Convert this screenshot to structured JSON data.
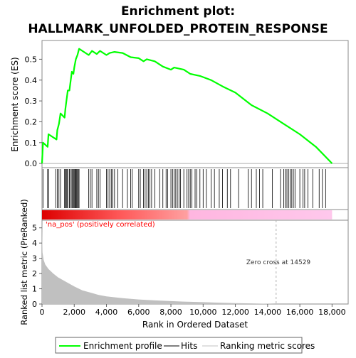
{
  "chart_data": {
    "type": "line",
    "title_line1": "Enrichment plot:",
    "title_line2": "HALLMARK_UNFOLDED_PROTEIN_RESPONSE",
    "xlabel": "Rank in Ordered Dataset",
    "ylabel_top": "Enrichment score (ES)",
    "ylabel_bottom": "Ranked list metric (PreRanked)",
    "xlim": [
      0,
      19000
    ],
    "x_ticks": [
      0,
      2000,
      4000,
      6000,
      8000,
      10000,
      12000,
      14000,
      16000,
      18000
    ],
    "x_tick_labels": [
      "0",
      "2,000",
      "4,000",
      "6,000",
      "8,000",
      "10,000",
      "12,000",
      "14,000",
      "16,000",
      "18,000"
    ],
    "es_ylim": [
      -0.02,
      0.59
    ],
    "es_y_ticks": [
      0.0,
      0.1,
      0.2,
      0.3,
      0.4,
      0.5
    ],
    "es_y_tick_labels": [
      "0.0",
      "0.1",
      "0.2",
      "0.3",
      "0.4",
      "0.5"
    ],
    "metric_ylim": [
      0,
      5.5
    ],
    "metric_y_ticks": [
      0,
      1,
      2,
      3,
      4,
      5
    ],
    "metric_y_tick_labels": [
      "0",
      "1",
      "2",
      "3",
      "4",
      "5"
    ],
    "max_rank": 18000,
    "zero_cross_rank": 14529,
    "zero_cross_label": "Zero cross at 14529",
    "positive_label": "'na_pos' (positively correlated)",
    "es_curve": [
      [
        0,
        0.0
      ],
      [
        60,
        0.1
      ],
      [
        350,
        0.08
      ],
      [
        400,
        0.14
      ],
      [
        900,
        0.115
      ],
      [
        950,
        0.16
      ],
      [
        1050,
        0.19
      ],
      [
        1150,
        0.24
      ],
      [
        1400,
        0.22
      ],
      [
        1450,
        0.26
      ],
      [
        1500,
        0.29
      ],
      [
        1600,
        0.35
      ],
      [
        1700,
        0.35
      ],
      [
        1750,
        0.38
      ],
      [
        1850,
        0.44
      ],
      [
        1950,
        0.43
      ],
      [
        2000,
        0.46
      ],
      [
        2100,
        0.5
      ],
      [
        2200,
        0.52
      ],
      [
        2300,
        0.55
      ],
      [
        2900,
        0.52
      ],
      [
        3100,
        0.54
      ],
      [
        3400,
        0.525
      ],
      [
        3600,
        0.54
      ],
      [
        4000,
        0.52
      ],
      [
        4200,
        0.53
      ],
      [
        4500,
        0.535
      ],
      [
        5000,
        0.53
      ],
      [
        5500,
        0.51
      ],
      [
        6000,
        0.505
      ],
      [
        6300,
        0.49
      ],
      [
        6500,
        0.5
      ],
      [
        7000,
        0.49
      ],
      [
        7500,
        0.465
      ],
      [
        8000,
        0.45
      ],
      [
        8200,
        0.46
      ],
      [
        8800,
        0.45
      ],
      [
        9200,
        0.43
      ],
      [
        9800,
        0.42
      ],
      [
        10500,
        0.4
      ],
      [
        11200,
        0.37
      ],
      [
        12000,
        0.34
      ],
      [
        13000,
        0.28
      ],
      [
        14000,
        0.24
      ],
      [
        15000,
        0.19
      ],
      [
        16000,
        0.14
      ],
      [
        17000,
        0.08
      ],
      [
        18000,
        0.0
      ]
    ],
    "hits": [
      60,
      350,
      400,
      850,
      950,
      1050,
      1150,
      1400,
      1450,
      1500,
      1550,
      1600,
      1700,
      1750,
      1850,
      1900,
      1950,
      2000,
      2050,
      2100,
      2150,
      2200,
      2250,
      2300,
      2900,
      3000,
      3100,
      3400,
      3500,
      3600,
      4000,
      4100,
      4200,
      4300,
      4400,
      4500,
      4700,
      5000,
      5300,
      5500,
      5600,
      6000,
      6100,
      6300,
      6400,
      6500,
      6600,
      6700,
      6800,
      7000,
      7300,
      7500,
      7700,
      7800,
      8000,
      8100,
      8200,
      8300,
      8400,
      8500,
      8600,
      8800,
      9000,
      9100,
      9200,
      9300,
      9500,
      9600,
      9800,
      10000,
      10200,
      10500,
      10700,
      11000,
      11200,
      11500,
      11700,
      12200,
      12800,
      13000,
      13300,
      13500,
      13700,
      14300,
      14800,
      15000,
      15100,
      15200,
      15300,
      15400,
      15500,
      15600,
      15700,
      16000,
      16200,
      16300,
      16500,
      16800,
      17200,
      17400,
      17600
    ],
    "metric_curve": [
      [
        0,
        5.3
      ],
      [
        30,
        3.4
      ],
      [
        100,
        2.9
      ],
      [
        200,
        2.6
      ],
      [
        400,
        2.3
      ],
      [
        700,
        2.0
      ],
      [
        1000,
        1.75
      ],
      [
        1500,
        1.45
      ],
      [
        2000,
        1.15
      ],
      [
        2500,
        0.9
      ],
      [
        3000,
        0.75
      ],
      [
        3500,
        0.6
      ],
      [
        4000,
        0.5
      ],
      [
        5000,
        0.38
      ],
      [
        6000,
        0.3
      ],
      [
        7000,
        0.24
      ],
      [
        8000,
        0.19
      ],
      [
        9000,
        0.15
      ],
      [
        10000,
        0.12
      ],
      [
        11000,
        0.09
      ],
      [
        12000,
        0.06
      ],
      [
        13000,
        0.04
      ],
      [
        14000,
        0.02
      ],
      [
        14529,
        0.0
      ]
    ],
    "legend": {
      "enrichment": "Enrichment profile",
      "hits": "Hits",
      "metric": "Ranking metric scores"
    },
    "colors": {
      "es_line": "#00ff00",
      "hits": "#000000",
      "metric_fill": "#c0c0c0",
      "pos_band": "#ff0000",
      "neg_band": "#ffb6e0",
      "zero_cross": "#b0b0b0",
      "pos_label": "#ff0000"
    }
  }
}
